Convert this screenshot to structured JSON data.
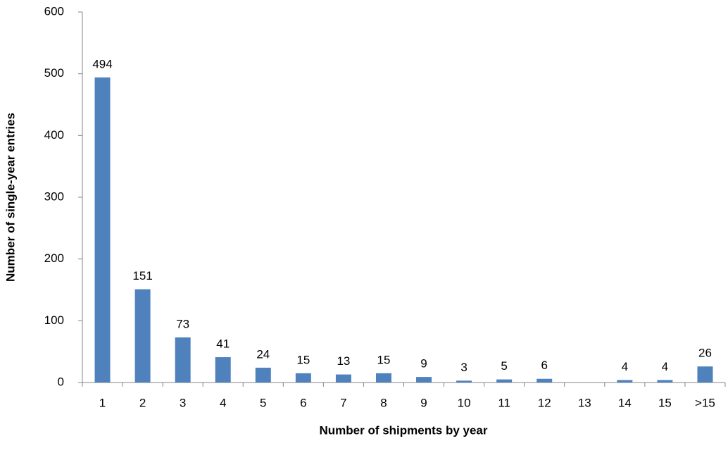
{
  "chart_data": {
    "type": "bar",
    "x_label": "Number of shipments by year",
    "y_label": "Number of single-year entries",
    "categories": [
      "1",
      "2",
      "3",
      "4",
      "5",
      "6",
      "7",
      "8",
      "9",
      "10",
      "11",
      "12",
      "13",
      "14",
      "15",
      ">15"
    ],
    "values": [
      494,
      151,
      73,
      41,
      24,
      15,
      13,
      15,
      9,
      3,
      5,
      6,
      null,
      4,
      4,
      26
    ],
    "color": "#4f81bd",
    "ylim": [
      0,
      600
    ],
    "yticks": [
      0,
      100,
      200,
      300,
      400,
      500,
      600
    ],
    "grid": false
  }
}
